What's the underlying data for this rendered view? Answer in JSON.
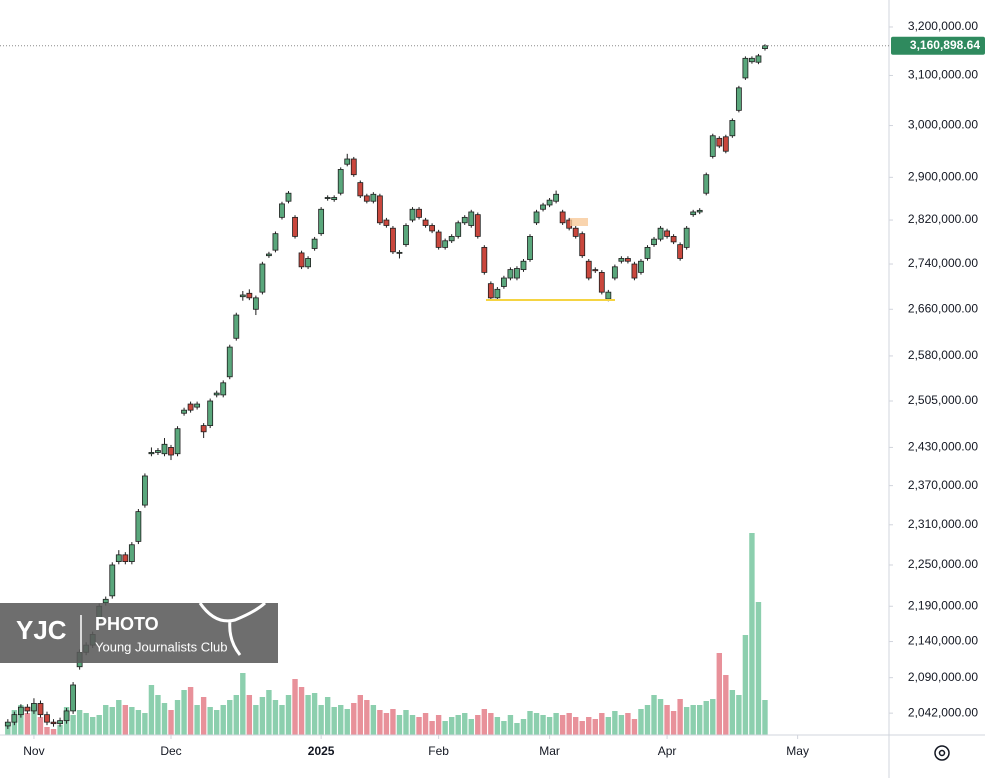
{
  "chart_data": {
    "type": "candlestick",
    "scale": "log",
    "ylim": [
      2013000,
      3257000
    ],
    "yticks": [
      {
        "value": 3200000,
        "label": "3,200,000.00"
      },
      {
        "value": 3100000,
        "label": "3,100,000.00"
      },
      {
        "value": 3000000,
        "label": "3,000,000.00"
      },
      {
        "value": 2900000,
        "label": "2,900,000.00"
      },
      {
        "value": 2820000,
        "label": "2,820,000.00"
      },
      {
        "value": 2740000,
        "label": "2,740,000.00"
      },
      {
        "value": 2660000,
        "label": "2,660,000.00"
      },
      {
        "value": 2580000,
        "label": "2,580,000.00"
      },
      {
        "value": 2505000,
        "label": "2,505,000.00"
      },
      {
        "value": 2430000,
        "label": "2,430,000.00"
      },
      {
        "value": 2370000,
        "label": "2,370,000.00"
      },
      {
        "value": 2310000,
        "label": "2,310,000.00"
      },
      {
        "value": 2250000,
        "label": "2,250,000.00"
      },
      {
        "value": 2190000,
        "label": "2,190,000.00"
      },
      {
        "value": 2140000,
        "label": "2,140,000.00"
      },
      {
        "value": 2090000,
        "label": "2,090,000.00"
      },
      {
        "value": 2042000,
        "label": "2,042,000.00"
      }
    ],
    "xlim": [
      -1.2,
      135
    ],
    "xticks": [
      {
        "value": 4,
        "label": "Nov"
      },
      {
        "value": 25,
        "label": "Dec"
      },
      {
        "value": 48,
        "label": "2025"
      },
      {
        "value": 66,
        "label": "Feb"
      },
      {
        "value": 83,
        "label": "Mar"
      },
      {
        "value": 101,
        "label": "Apr"
      },
      {
        "value": 121,
        "label": "May"
      }
    ],
    "up_color": "#5aa77c",
    "down_color": "#c9473d",
    "volume_up_color": "#8ccfae",
    "volume_down_color": "#e8919a",
    "open": [
      2025000,
      2030000,
      2040000,
      2050000,
      2045000,
      2055000,
      2040000,
      2030000,
      2028000,
      2032000,
      2045000,
      2105000,
      2125000,
      2135000,
      2170000,
      2195000,
      2205000,
      2255000,
      2265000,
      2255000,
      2285000,
      2340000,
      2420000,
      2422000,
      2420000,
      2430000,
      2420000,
      2485000,
      2500000,
      2495000,
      2465000,
      2465000,
      2515000,
      2515000,
      2545000,
      2610000,
      2682000,
      2688000,
      2660000,
      2690000,
      2755000,
      2765000,
      2825000,
      2855000,
      2825000,
      2760000,
      2735000,
      2768000,
      2795000,
      2860000,
      2858000,
      2870000,
      2925000,
      2935000,
      2890000,
      2865000,
      2855000,
      2865000,
      2820000,
      2805000,
      2760000,
      2775000,
      2820000,
      2840000,
      2820000,
      2810000,
      2798000,
      2770000,
      2782000,
      2790000,
      2815000,
      2810000,
      2830000,
      2770000,
      2705000,
      2680000,
      2700000,
      2715000,
      2715000,
      2730000,
      2748000,
      2815000,
      2840000,
      2848000,
      2855000,
      2835000,
      2820000,
      2805000,
      2795000,
      2745000,
      2730000,
      2725000,
      2678000,
      2715000,
      2745000,
      2750000,
      2740000,
      2725000,
      2750000,
      2775000,
      2785000,
      2800000,
      2790000,
      2775000,
      2770000,
      2830000,
      2835000,
      2870000,
      2940000,
      2975000,
      2978000,
      2980000,
      3030000,
      3095000,
      3128000,
      3127000,
      3155000
    ],
    "high": [
      2034000,
      2044000,
      2054000,
      2054000,
      2062000,
      2059000,
      2044000,
      2034000,
      2036000,
      2049000,
      2084000,
      2129000,
      2139000,
      2154000,
      2194000,
      2204000,
      2254000,
      2272000,
      2269000,
      2284000,
      2334000,
      2389000,
      2430000,
      2429000,
      2445000,
      2434000,
      2464000,
      2494000,
      2504000,
      2504000,
      2469000,
      2509000,
      2522000,
      2539000,
      2599000,
      2654000,
      2692000,
      2695000,
      2684000,
      2744000,
      2762000,
      2799000,
      2854000,
      2874000,
      2829000,
      2764000,
      2754000,
      2789000,
      2844000,
      2866000,
      2866000,
      2919000,
      2945000,
      2939000,
      2894000,
      2869000,
      2872000,
      2869000,
      2824000,
      2809000,
      2765000,
      2814000,
      2844000,
      2844000,
      2824000,
      2814000,
      2802000,
      2786000,
      2794000,
      2819000,
      2829000,
      2839000,
      2834000,
      2774000,
      2709000,
      2699000,
      2719000,
      2734000,
      2736000,
      2749000,
      2794000,
      2839000,
      2852000,
      2861000,
      2875000,
      2839000,
      2824000,
      2809000,
      2799000,
      2749000,
      2734000,
      2729000,
      2694000,
      2739000,
      2754000,
      2754000,
      2744000,
      2749000,
      2774000,
      2789000,
      2809000,
      2804000,
      2794000,
      2779000,
      2809000,
      2839000,
      2842000,
      2909000,
      2984000,
      2979000,
      2982000,
      3014000,
      3079000,
      3139000,
      3139000,
      3144000,
      3164000
    ],
    "low": [
      2021000,
      2026000,
      2036000,
      2041000,
      2041000,
      2036000,
      2026000,
      2024000,
      2024000,
      2028000,
      2041000,
      2101000,
      2121000,
      2131000,
      2166000,
      2191000,
      2201000,
      2251000,
      2251000,
      2251000,
      2281000,
      2336000,
      2416000,
      2418000,
      2416000,
      2410000,
      2416000,
      2481000,
      2486000,
      2491000,
      2445000,
      2461000,
      2511000,
      2511000,
      2541000,
      2606000,
      2675000,
      2676000,
      2650000,
      2686000,
      2751000,
      2761000,
      2821000,
      2851000,
      2786000,
      2731000,
      2731000,
      2764000,
      2791000,
      2856000,
      2854000,
      2866000,
      2921000,
      2901000,
      2861000,
      2851000,
      2851000,
      2811000,
      2806000,
      2758000,
      2750000,
      2771000,
      2816000,
      2821000,
      2806000,
      2796000,
      2766000,
      2766000,
      2778000,
      2786000,
      2811000,
      2806000,
      2786000,
      2721000,
      2676000,
      2676000,
      2696000,
      2711000,
      2711000,
      2726000,
      2744000,
      2811000,
      2836000,
      2844000,
      2851000,
      2811000,
      2801000,
      2786000,
      2751000,
      2711000,
      2724000,
      2686000,
      2674000,
      2711000,
      2741000,
      2741000,
      2711000,
      2721000,
      2746000,
      2771000,
      2781000,
      2786000,
      2776000,
      2746000,
      2766000,
      2826000,
      2831000,
      2866000,
      2936000,
      2956000,
      2946000,
      2976000,
      3026000,
      3091000,
      3124000,
      3123000,
      3151000
    ],
    "close": [
      2030000,
      2040000,
      2050000,
      2045000,
      2055000,
      2040000,
      2030000,
      2028000,
      2032000,
      2045000,
      2080000,
      2125000,
      2135000,
      2150000,
      2190000,
      2200000,
      2250000,
      2265000,
      2255000,
      2280000,
      2330000,
      2385000,
      2422000,
      2425000,
      2435000,
      2418000,
      2460000,
      2490000,
      2490000,
      2500000,
      2455000,
      2505000,
      2518000,
      2535000,
      2595000,
      2650000,
      2685000,
      2680000,
      2680000,
      2740000,
      2758000,
      2795000,
      2850000,
      2870000,
      2790000,
      2735000,
      2750000,
      2785000,
      2840000,
      2862000,
      2862000,
      2915000,
      2935000,
      2905000,
      2865000,
      2855000,
      2868000,
      2815000,
      2810000,
      2762000,
      2761000,
      2810000,
      2840000,
      2825000,
      2810000,
      2800000,
      2770000,
      2782000,
      2790000,
      2815000,
      2825000,
      2835000,
      2790000,
      2725000,
      2680000,
      2695000,
      2715000,
      2730000,
      2732000,
      2745000,
      2790000,
      2835000,
      2848000,
      2857000,
      2868000,
      2815000,
      2805000,
      2790000,
      2755000,
      2715000,
      2728000,
      2690000,
      2690000,
      2735000,
      2750000,
      2745000,
      2715000,
      2745000,
      2770000,
      2785000,
      2805000,
      2790000,
      2780000,
      2750000,
      2805000,
      2835000,
      2838000,
      2905000,
      2980000,
      2960000,
      2950000,
      3010000,
      3075000,
      3135000,
      3135000,
      3140000,
      3160898.64
    ],
    "vlim": [
      0,
      210
    ],
    "volume": [
      10,
      25,
      30,
      22,
      28,
      18,
      8,
      6,
      10,
      28,
      20,
      25,
      22,
      18,
      20,
      30,
      28,
      35,
      30,
      28,
      25,
      22,
      50,
      40,
      32,
      25,
      35,
      45,
      48,
      30,
      38,
      28,
      25,
      30,
      35,
      40,
      62,
      40,
      30,
      38,
      45,
      35,
      30,
      40,
      56,
      48,
      40,
      42,
      30,
      38,
      28,
      30,
      26,
      32,
      40,
      35,
      30,
      25,
      22,
      26,
      20,
      25,
      20,
      18,
      22,
      14,
      20,
      14,
      18,
      20,
      22,
      16,
      20,
      26,
      22,
      18,
      14,
      20,
      12,
      16,
      24,
      22,
      20,
      18,
      22,
      20,
      22,
      18,
      14,
      18,
      16,
      22,
      18,
      24,
      20,
      22,
      16,
      26,
      30,
      40,
      36,
      30,
      24,
      36,
      28,
      30,
      30,
      34,
      36,
      82,
      60,
      45,
      40,
      100,
      202,
      133,
      35
    ],
    "last_price": {
      "value": 3160898.64,
      "label": "3,160,898.64"
    },
    "watermark": {
      "brand": "YJC",
      "label": "PHOTO",
      "sub": "Young Journalists Club"
    }
  }
}
